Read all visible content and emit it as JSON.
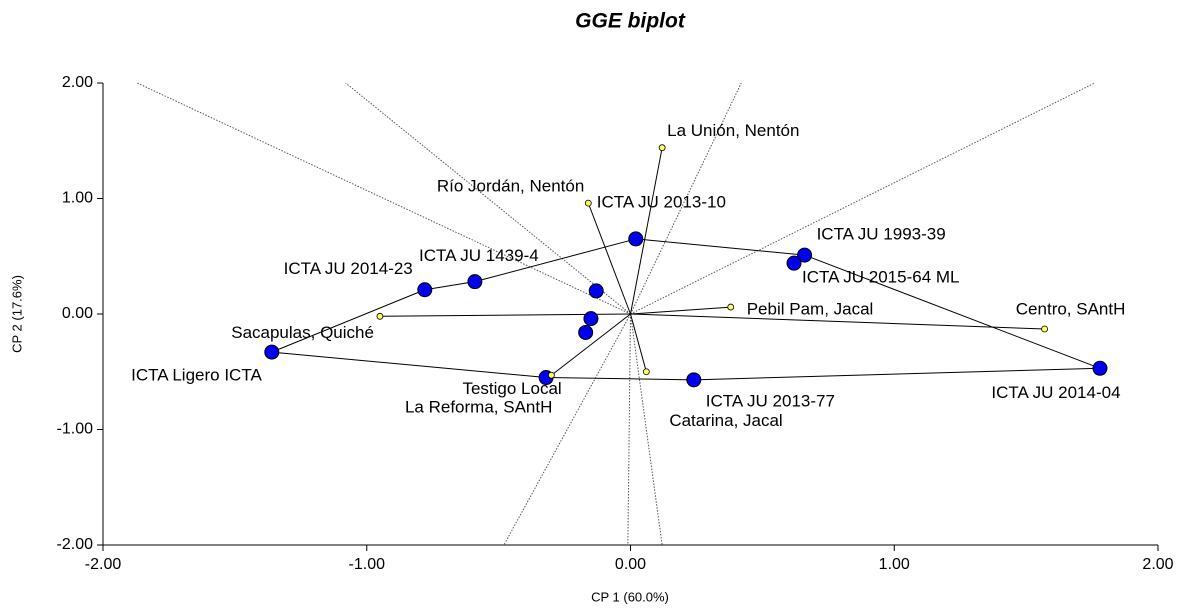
{
  "chart_data": {
    "type": "scatter",
    "title": "GGE biplot",
    "xlabel": "CP 1 (60.0%)",
    "ylabel": "CP 2 (17.6%)",
    "xlim": [
      -2,
      2
    ],
    "ylim": [
      -2,
      2
    ],
    "xticks": [
      {
        "value": -2,
        "label": "-2.00"
      },
      {
        "value": -1,
        "label": "-1.00"
      },
      {
        "value": 0,
        "label": "0.00"
      },
      {
        "value": 1,
        "label": "1.00"
      },
      {
        "value": 2,
        "label": "2.00"
      }
    ],
    "yticks": [
      {
        "value": -2,
        "label": "-2.00"
      },
      {
        "value": -1,
        "label": "-1.00"
      },
      {
        "value": 0,
        "label": "0.00"
      },
      {
        "value": 1,
        "label": "1.00"
      },
      {
        "value": 2,
        "label": "2.00"
      }
    ],
    "series": [
      {
        "color": "#0000ee",
        "labels": [
          "ICTA Ligero ICTA",
          "ICTA JU 2014-23",
          "ICTA JU 1439-4",
          "ICTA JU 2013-10",
          "ICTA JU 1993-39",
          "ICTA JU 2015-64 ML",
          "ICTA JU 2014-04",
          "ICTA JU 2013-77",
          "Testigo Local",
          null,
          null,
          null
        ],
        "x": [
          -1.36,
          -0.78,
          -0.59,
          0.02,
          0.66,
          0.62,
          1.78,
          0.24,
          -0.32,
          -0.13,
          -0.15,
          -0.17
        ],
        "values": [
          -0.33,
          0.21,
          0.28,
          0.65,
          0.51,
          0.44,
          -0.47,
          -0.57,
          -0.55,
          0.2,
          -0.04,
          -0.16
        ]
      },
      {
        "color": "#ffff66",
        "labels": [
          "La Unión, Nentón",
          "Río Jordán, Nentón",
          "Pebil Pam, Jacal",
          "Centro, SAntH",
          "Sacapulas, Quiché",
          "Catarina, Jacal",
          "La Reforma, SAntH"
        ],
        "x": [
          0.12,
          -0.16,
          0.38,
          1.57,
          -0.95,
          0.06,
          -0.3
        ],
        "values": [
          1.44,
          0.96,
          0.06,
          -0.13,
          -0.02,
          -0.5,
          -0.53
        ]
      }
    ],
    "rays": {
      "x": [
        -1.87,
        -1.08,
        0.42,
        1.76,
        -0.48,
        -0.01,
        0.12
      ],
      "values": [
        2,
        2,
        2,
        2,
        -2,
        -2,
        -2
      ]
    }
  }
}
